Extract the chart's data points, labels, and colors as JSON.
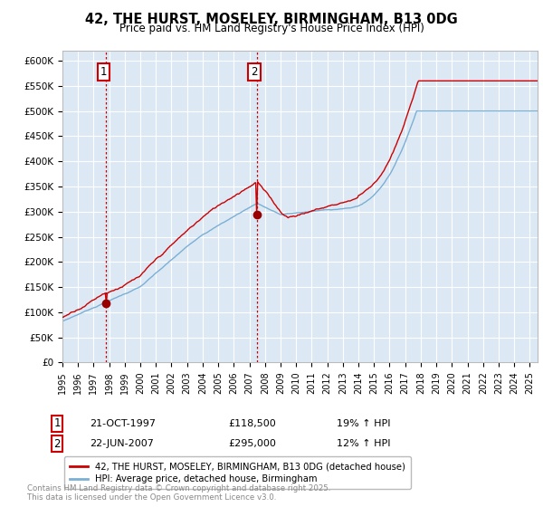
{
  "title": "42, THE HURST, MOSELEY, BIRMINGHAM, B13 0DG",
  "subtitle": "Price paid vs. HM Land Registry's House Price Index (HPI)",
  "ylim": [
    0,
    620000
  ],
  "yticks": [
    0,
    50000,
    100000,
    150000,
    200000,
    250000,
    300000,
    350000,
    400000,
    450000,
    500000,
    550000,
    600000
  ],
  "ytick_labels": [
    "£0",
    "£50K",
    "£100K",
    "£150K",
    "£200K",
    "£250K",
    "£300K",
    "£350K",
    "£400K",
    "£450K",
    "£500K",
    "£550K",
    "£600K"
  ],
  "sale1_date": 1997.81,
  "sale1_price": 118500,
  "sale2_date": 2007.47,
  "sale2_price": 295000,
  "line_color_red": "#cc0000",
  "line_color_blue": "#7bafd4",
  "marker_color_red": "#990000",
  "vline_color": "#cc0000",
  "background_color": "#ffffff",
  "chart_bg_color": "#dce9f5",
  "grid_color": "#ffffff",
  "legend_label_red": "42, THE HURST, MOSELEY, BIRMINGHAM, B13 0DG (detached house)",
  "legend_label_blue": "HPI: Average price, detached house, Birmingham",
  "footer": "Contains HM Land Registry data © Crown copyright and database right 2025.\nThis data is licensed under the Open Government Licence v3.0.",
  "xmin": 1995.0,
  "xmax": 2025.5,
  "sale1_date_str": "21-OCT-1997",
  "sale1_price_str": "£118,500",
  "sale1_hpi_str": "19% ↑ HPI",
  "sale2_date_str": "22-JUN-2007",
  "sale2_price_str": "£295,000",
  "sale2_hpi_str": "12% ↑ HPI"
}
